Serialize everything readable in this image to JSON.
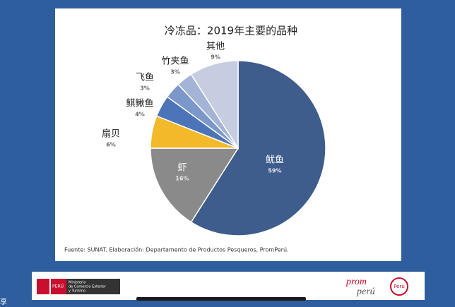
{
  "chart_data": {
    "type": "pie",
    "title": "冷冻品：2019年主要的品种",
    "categories": [
      "鱿鱼",
      "虾",
      "扇贝",
      "鲯鳅鱼",
      "飞鱼",
      "竹夹鱼",
      "其他"
    ],
    "values": [
      59,
      16,
      6,
      4,
      3,
      3,
      9
    ],
    "value_labels": [
      "59%",
      "16%",
      "6%",
      "4%",
      "3%",
      "3%",
      "9%"
    ],
    "colors": [
      "#3e5c8c",
      "#8a8a8a",
      "#f2b92b",
      "#4d74b8",
      "#7c97c9",
      "#a4b4d6",
      "#c6cde1"
    ],
    "source": "Fuente: SUNAT. Elaboración: Departamento de Productos Pesqueros, PromPerú."
  },
  "footer": {
    "country": "PERÚ",
    "ministry": [
      "Ministerio",
      "de Comercio Exterior",
      "y Turismo"
    ],
    "brand": [
      "prom",
      "perú"
    ],
    "mark": "Perú"
  },
  "screen_text": "享"
}
